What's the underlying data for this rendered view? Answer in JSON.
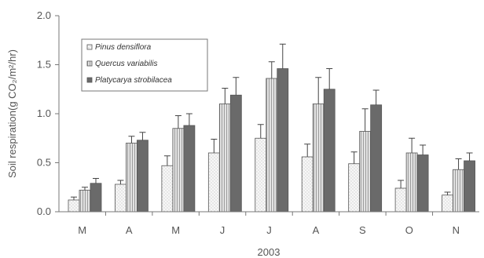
{
  "chart_data": {
    "type": "bar",
    "categories": [
      "M",
      "A",
      "M",
      "J",
      "J",
      "A",
      "S",
      "O",
      "N"
    ],
    "series": [
      {
        "name": "Pinus densiflora",
        "values": [
          0.12,
          0.28,
          0.47,
          0.6,
          0.75,
          0.56,
          0.49,
          0.24,
          0.17
        ],
        "errors": [
          0.03,
          0.04,
          0.1,
          0.14,
          0.14,
          0.13,
          0.12,
          0.08,
          0.03
        ]
      },
      {
        "name": "Quercus variabilis",
        "values": [
          0.22,
          0.7,
          0.85,
          1.1,
          1.36,
          1.1,
          0.82,
          0.6,
          0.43
        ],
        "errors": [
          0.03,
          0.07,
          0.13,
          0.16,
          0.17,
          0.27,
          0.23,
          0.15,
          0.11
        ]
      },
      {
        "name": "Platycarya strobilacea",
        "values": [
          0.29,
          0.73,
          0.88,
          1.19,
          1.46,
          1.25,
          1.09,
          0.58,
          0.52
        ],
        "errors": [
          0.05,
          0.08,
          0.12,
          0.18,
          0.25,
          0.21,
          0.15,
          0.1,
          0.08
        ]
      }
    ],
    "xlabel": "2003",
    "ylabel": "Soil respiration(g CO₂/m²/hr)",
    "ylim": [
      0,
      2.0
    ],
    "yticks": [
      "0.0",
      "0.5",
      "1.0",
      "1.5",
      "2.0"
    ],
    "legend": "top-left",
    "grid": false,
    "colors": {
      "series_fills": [
        "#f4f4f4",
        "#d8d8d8",
        "#6a6a6a"
      ],
      "bar_stroke": "#555555",
      "axis": "#777777"
    }
  }
}
